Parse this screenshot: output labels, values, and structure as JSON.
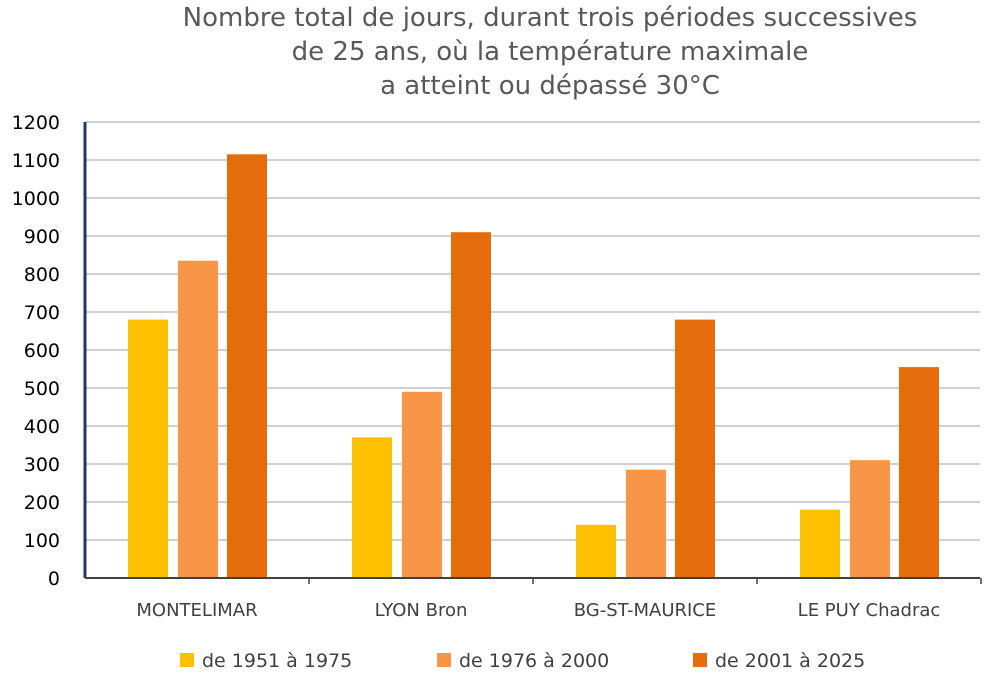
{
  "chart_data": {
    "type": "bar",
    "title": [
      "Nombre total de jours, durant trois périodes successives",
      "de 25 ans, où la température maximale",
      "a atteint ou dépassé 30°C"
    ],
    "categories": [
      "MONTELIMAR",
      "LYON Bron",
      "BG-ST-MAURICE",
      "LE PUY Chadrac"
    ],
    "series": [
      {
        "name": "de 1951 à 1975",
        "color": "#FFC000",
        "values": [
          680,
          370,
          140,
          180
        ]
      },
      {
        "name": "de 1976 à 2000",
        "color": "#F79646",
        "values": [
          835,
          490,
          285,
          310
        ]
      },
      {
        "name": "de 2001 à 2025",
        "color": "#E46C0A",
        "values": [
          1115,
          910,
          680,
          555
        ]
      }
    ],
    "ylim": [
      0,
      1200
    ],
    "yticks": [
      0,
      100,
      200,
      300,
      400,
      500,
      600,
      700,
      800,
      900,
      1000,
      1100,
      1200
    ],
    "grid": true,
    "legend_position": "bottom",
    "xlabel": "",
    "ylabel": ""
  }
}
